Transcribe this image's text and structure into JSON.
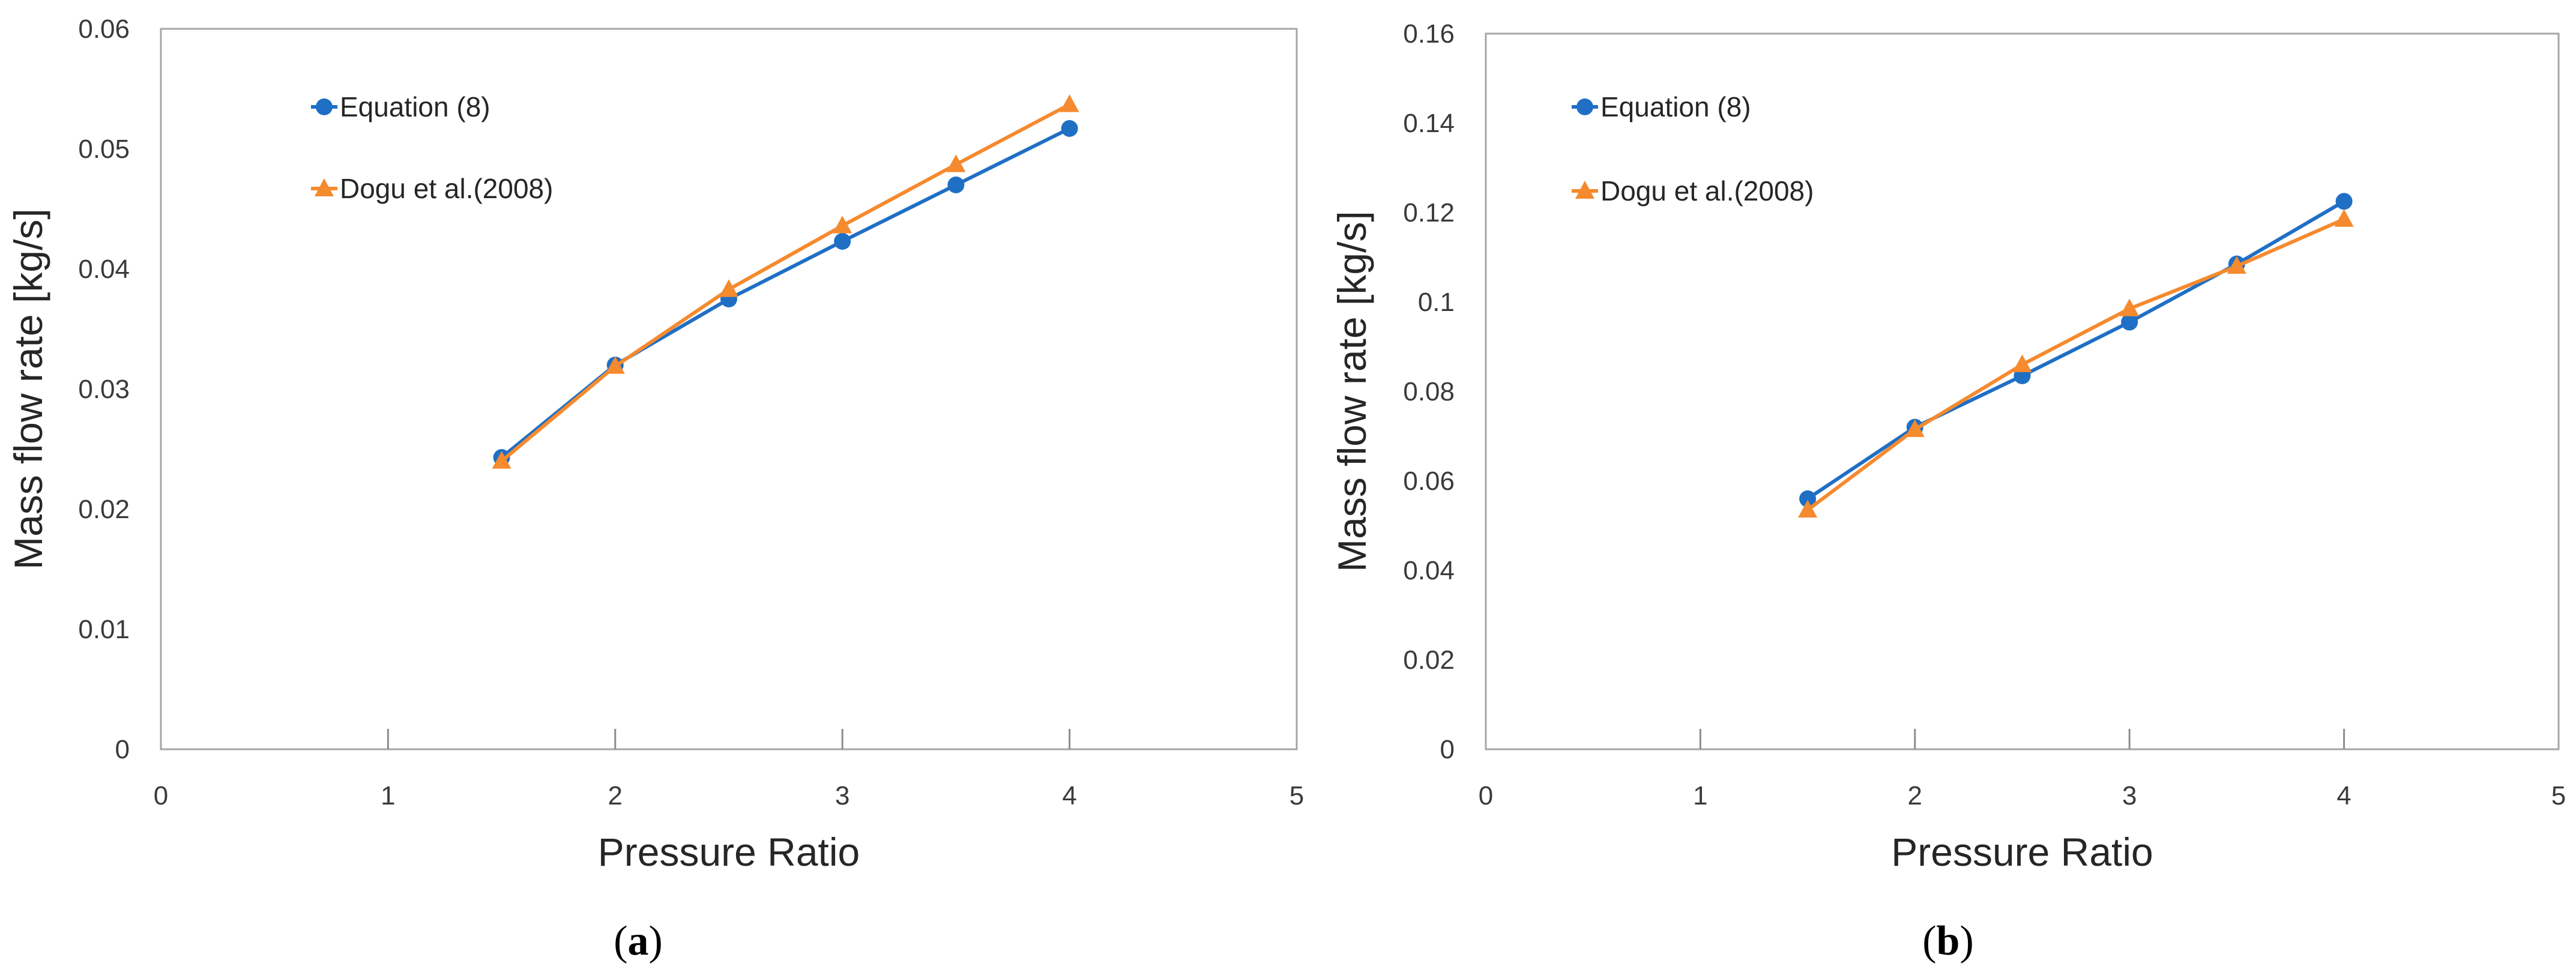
{
  "chart_data": [
    {
      "type": "line",
      "panel": "a",
      "caption_letter": "a",
      "title": "",
      "xlabel": "Pressure Ratio",
      "ylabel": "Mass flow rate [kg/s]",
      "xlim": [
        0,
        5
      ],
      "ylim": [
        0,
        0.06
      ],
      "xticks": [
        "0",
        "1",
        "2",
        "3",
        "4",
        "5"
      ],
      "xtick_values": [
        0,
        1,
        2,
        3,
        4,
        5
      ],
      "yticks": [
        "0",
        "0.01",
        "0.02",
        "0.03",
        "0.04",
        "0.05",
        "0.06"
      ],
      "ytick_values": [
        0,
        0.01,
        0.02,
        0.03,
        0.04,
        0.05,
        0.06
      ],
      "grid": false,
      "legend_position": "top-left",
      "x": [
        1.5,
        2,
        2.5,
        3,
        3.5,
        4
      ],
      "series": [
        {
          "name": "Equation (8)",
          "marker": "circle",
          "color": "#1f6fc5",
          "values": [
            0.0243,
            0.032,
            0.0375,
            0.0423,
            0.047,
            0.0517
          ]
        },
        {
          "name": "Dogu et al.(2008)",
          "marker": "triangle",
          "color": "#f58a2e",
          "values": [
            0.024,
            0.0319,
            0.0383,
            0.0436,
            0.0487,
            0.0537
          ]
        }
      ]
    },
    {
      "type": "line",
      "panel": "b",
      "caption_letter": "b",
      "title": "",
      "xlabel": "Pressure Ratio",
      "ylabel": "Mass flow rate [kg/s]",
      "xlim": [
        0,
        5
      ],
      "ylim": [
        0,
        0.16
      ],
      "xticks": [
        "0",
        "1",
        "2",
        "3",
        "4",
        "5"
      ],
      "xtick_values": [
        0,
        1,
        2,
        3,
        4,
        5
      ],
      "yticks": [
        "0",
        "0.02",
        "0.04",
        "0.06",
        "0.08",
        "0.1",
        "0.12",
        "0.14",
        "0.16"
      ],
      "ytick_values": [
        0,
        0.02,
        0.04,
        0.06,
        0.08,
        0.1,
        0.12,
        0.14,
        0.16
      ],
      "grid": false,
      "legend_position": "top-left",
      "x": [
        1.5,
        2,
        2.5,
        3,
        3.5,
        4
      ],
      "series": [
        {
          "name": "Equation (8)",
          "marker": "circle",
          "color": "#1f6fc5",
          "values": [
            0.056,
            0.072,
            0.0835,
            0.0955,
            0.1085,
            0.1225
          ]
        },
        {
          "name": "Dogu et al.(2008)",
          "marker": "triangle",
          "color": "#f58a2e",
          "values": [
            0.0535,
            0.0715,
            0.086,
            0.0985,
            0.108,
            0.1185
          ]
        }
      ]
    }
  ]
}
